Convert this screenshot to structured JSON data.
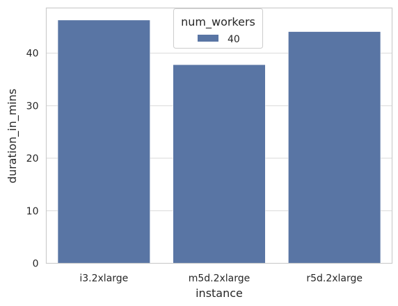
{
  "chart_data": {
    "type": "bar",
    "title": "",
    "xlabel": "instance",
    "ylabel": "duration_in_mins",
    "categories": [
      "i3.2xlarge",
      "m5d.2xlarge",
      "r5d.2xlarge"
    ],
    "series": [
      {
        "name": "40",
        "values": [
          46.3,
          37.8,
          44.1
        ],
        "color": "#5975a4"
      }
    ],
    "ylim": [
      0,
      48.6
    ],
    "yticks": [
      0,
      10,
      20,
      30,
      40
    ],
    "grid": "horizontal",
    "legend": {
      "title": "num_workers",
      "placement": "top-center"
    }
  }
}
